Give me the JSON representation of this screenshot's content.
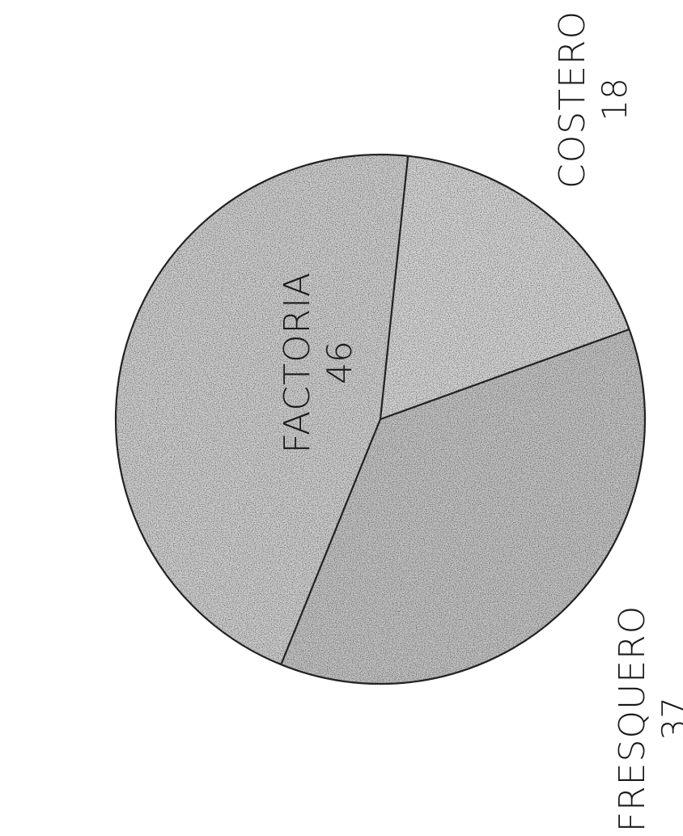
{
  "chart_data": {
    "type": "pie",
    "orientation": "rotated-90-ccw",
    "slices": [
      {
        "label": "FACTORIA",
        "value": 46
      },
      {
        "label": "FRESQUERO",
        "value": 37
      },
      {
        "label": "COSTERO",
        "value": 18
      }
    ],
    "fill": "stippled-gray",
    "colors": {
      "fill": "#c9c9c9",
      "stroke": "#222222",
      "stipple": "#333333"
    }
  }
}
